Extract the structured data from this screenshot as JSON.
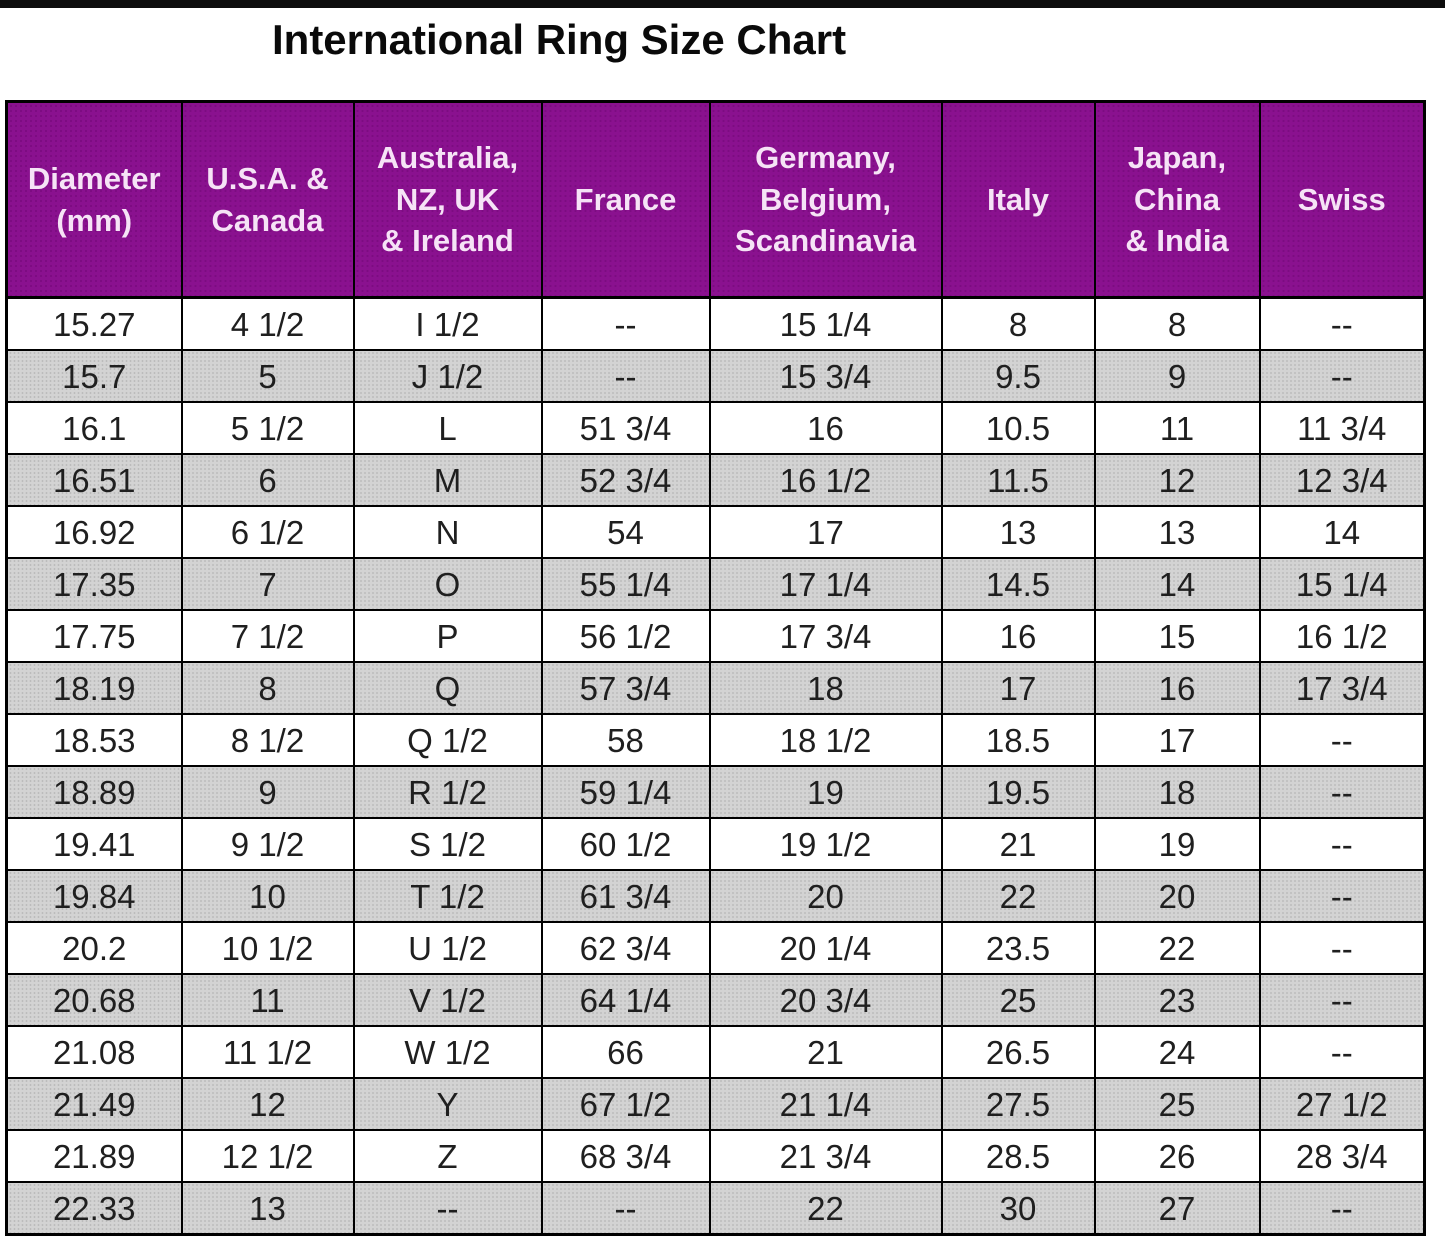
{
  "page": {
    "title": "International Ring Size Chart"
  },
  "colors": {
    "header_bg": "#8a118f",
    "header_text": "#f6e3f6",
    "alt_row_bg": "#d3d3d3",
    "row_bg": "#ffffff",
    "border": "#000000",
    "text": "#1f1f1f",
    "top_bar": "#0d0d0d"
  },
  "chart_data": {
    "type": "table",
    "title": "International Ring Size Chart",
    "empty_marker": "--",
    "columns": [
      "Diameter\n(mm)",
      "U.S.A. &\nCanada",
      "Australia,\nNZ, UK\n& Ireland",
      "France",
      "Germany,\nBelgium,\nScandinavia",
      "Italy",
      "Japan,\nChina\n& India",
      "Swiss"
    ],
    "rows": [
      [
        "15.27",
        "4 1/2",
        "I 1/2",
        "--",
        "15 1/4",
        "8",
        "8",
        "--"
      ],
      [
        "15.7",
        "5",
        "J 1/2",
        "--",
        "15 3/4",
        "9.5",
        "9",
        "--"
      ],
      [
        "16.1",
        "5 1/2",
        "L",
        "51 3/4",
        "16",
        "10.5",
        "11",
        "11 3/4"
      ],
      [
        "16.51",
        "6",
        "M",
        "52 3/4",
        "16 1/2",
        "11.5",
        "12",
        "12 3/4"
      ],
      [
        "16.92",
        "6 1/2",
        "N",
        "54",
        "17",
        "13",
        "13",
        "14"
      ],
      [
        "17.35",
        "7",
        "O",
        "55 1/4",
        "17 1/4",
        "14.5",
        "14",
        "15 1/4"
      ],
      [
        "17.75",
        "7 1/2",
        "P",
        "56 1/2",
        "17 3/4",
        "16",
        "15",
        "16 1/2"
      ],
      [
        "18.19",
        "8",
        "Q",
        "57 3/4",
        "18",
        "17",
        "16",
        "17 3/4"
      ],
      [
        "18.53",
        "8 1/2",
        "Q 1/2",
        "58",
        "18 1/2",
        "18.5",
        "17",
        "--"
      ],
      [
        "18.89",
        "9",
        "R 1/2",
        "59 1/4",
        "19",
        "19.5",
        "18",
        "--"
      ],
      [
        "19.41",
        "9 1/2",
        "S 1/2",
        "60 1/2",
        "19 1/2",
        "21",
        "19",
        "--"
      ],
      [
        "19.84",
        "10",
        "T 1/2",
        "61 3/4",
        "20",
        "22",
        "20",
        "--"
      ],
      [
        "20.2",
        "10 1/2",
        "U 1/2",
        "62 3/4",
        "20 1/4",
        "23.5",
        "22",
        "--"
      ],
      [
        "20.68",
        "11",
        "V 1/2",
        "64 1/4",
        "20 3/4",
        "25",
        "23",
        "--"
      ],
      [
        "21.08",
        "11 1/2",
        "W 1/2",
        "66",
        "21",
        "26.5",
        "24",
        "--"
      ],
      [
        "21.49",
        "12",
        "Y",
        "67 1/2",
        "21 1/4",
        "27.5",
        "25",
        "27 1/2"
      ],
      [
        "21.89",
        "12 1/2",
        "Z",
        "68 3/4",
        "21 3/4",
        "28.5",
        "26",
        "28 3/4"
      ],
      [
        "22.33",
        "13",
        "--",
        "--",
        "22",
        "30",
        "27",
        "--"
      ]
    ]
  }
}
